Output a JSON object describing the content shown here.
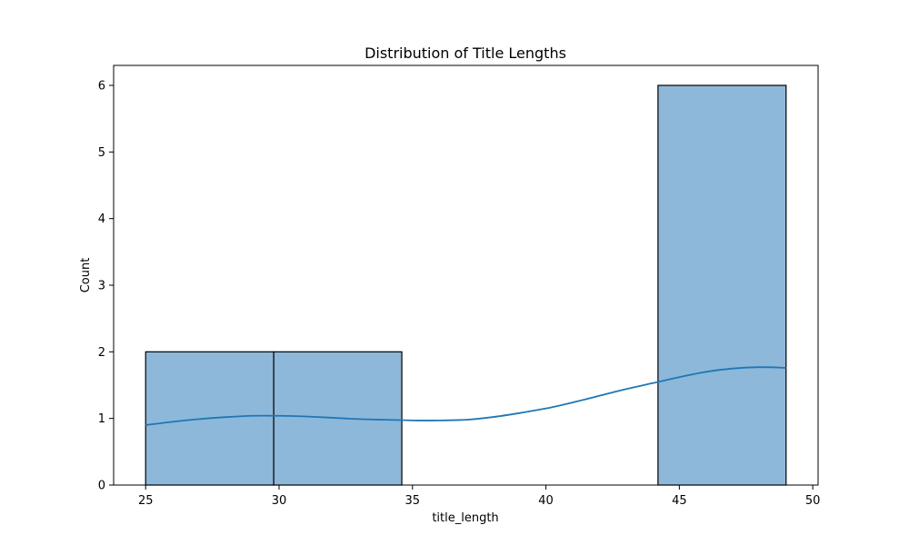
{
  "chart_data": {
    "type": "bar",
    "title": "Distribution of Title Lengths",
    "xlabel": "title_length",
    "ylabel": "Count",
    "xlim": [
      23.8,
      50.2
    ],
    "ylim": [
      0,
      6.3
    ],
    "x_ticks": [
      25,
      30,
      35,
      40,
      45,
      50
    ],
    "y_ticks": [
      0,
      1,
      2,
      3,
      4,
      5,
      6
    ],
    "bins": [
      {
        "x0": 25.0,
        "x1": 29.8,
        "count": 2
      },
      {
        "x0": 29.8,
        "x1": 34.6,
        "count": 2
      },
      {
        "x0": 34.6,
        "x1": 39.4,
        "count": 0
      },
      {
        "x0": 39.4,
        "x1": 44.2,
        "count": 0
      },
      {
        "x0": 44.2,
        "x1": 49.0,
        "count": 6
      }
    ],
    "kde": {
      "x": [
        25,
        26,
        27,
        28,
        29,
        30,
        31,
        32,
        33,
        34,
        35,
        36,
        37,
        38,
        39,
        40,
        41,
        42,
        43,
        44,
        45,
        46,
        47,
        48,
        49
      ],
      "y": [
        0.9,
        0.95,
        0.99,
        1.02,
        1.04,
        1.04,
        1.03,
        1.01,
        0.99,
        0.98,
        0.97,
        0.97,
        0.98,
        1.02,
        1.08,
        1.15,
        1.24,
        1.34,
        1.44,
        1.53,
        1.62,
        1.7,
        1.75,
        1.77,
        1.76
      ]
    },
    "bar_color": "#8db8da",
    "bar_edge_color": "#000000",
    "kde_color": "#1f77b4",
    "grid": false
  }
}
